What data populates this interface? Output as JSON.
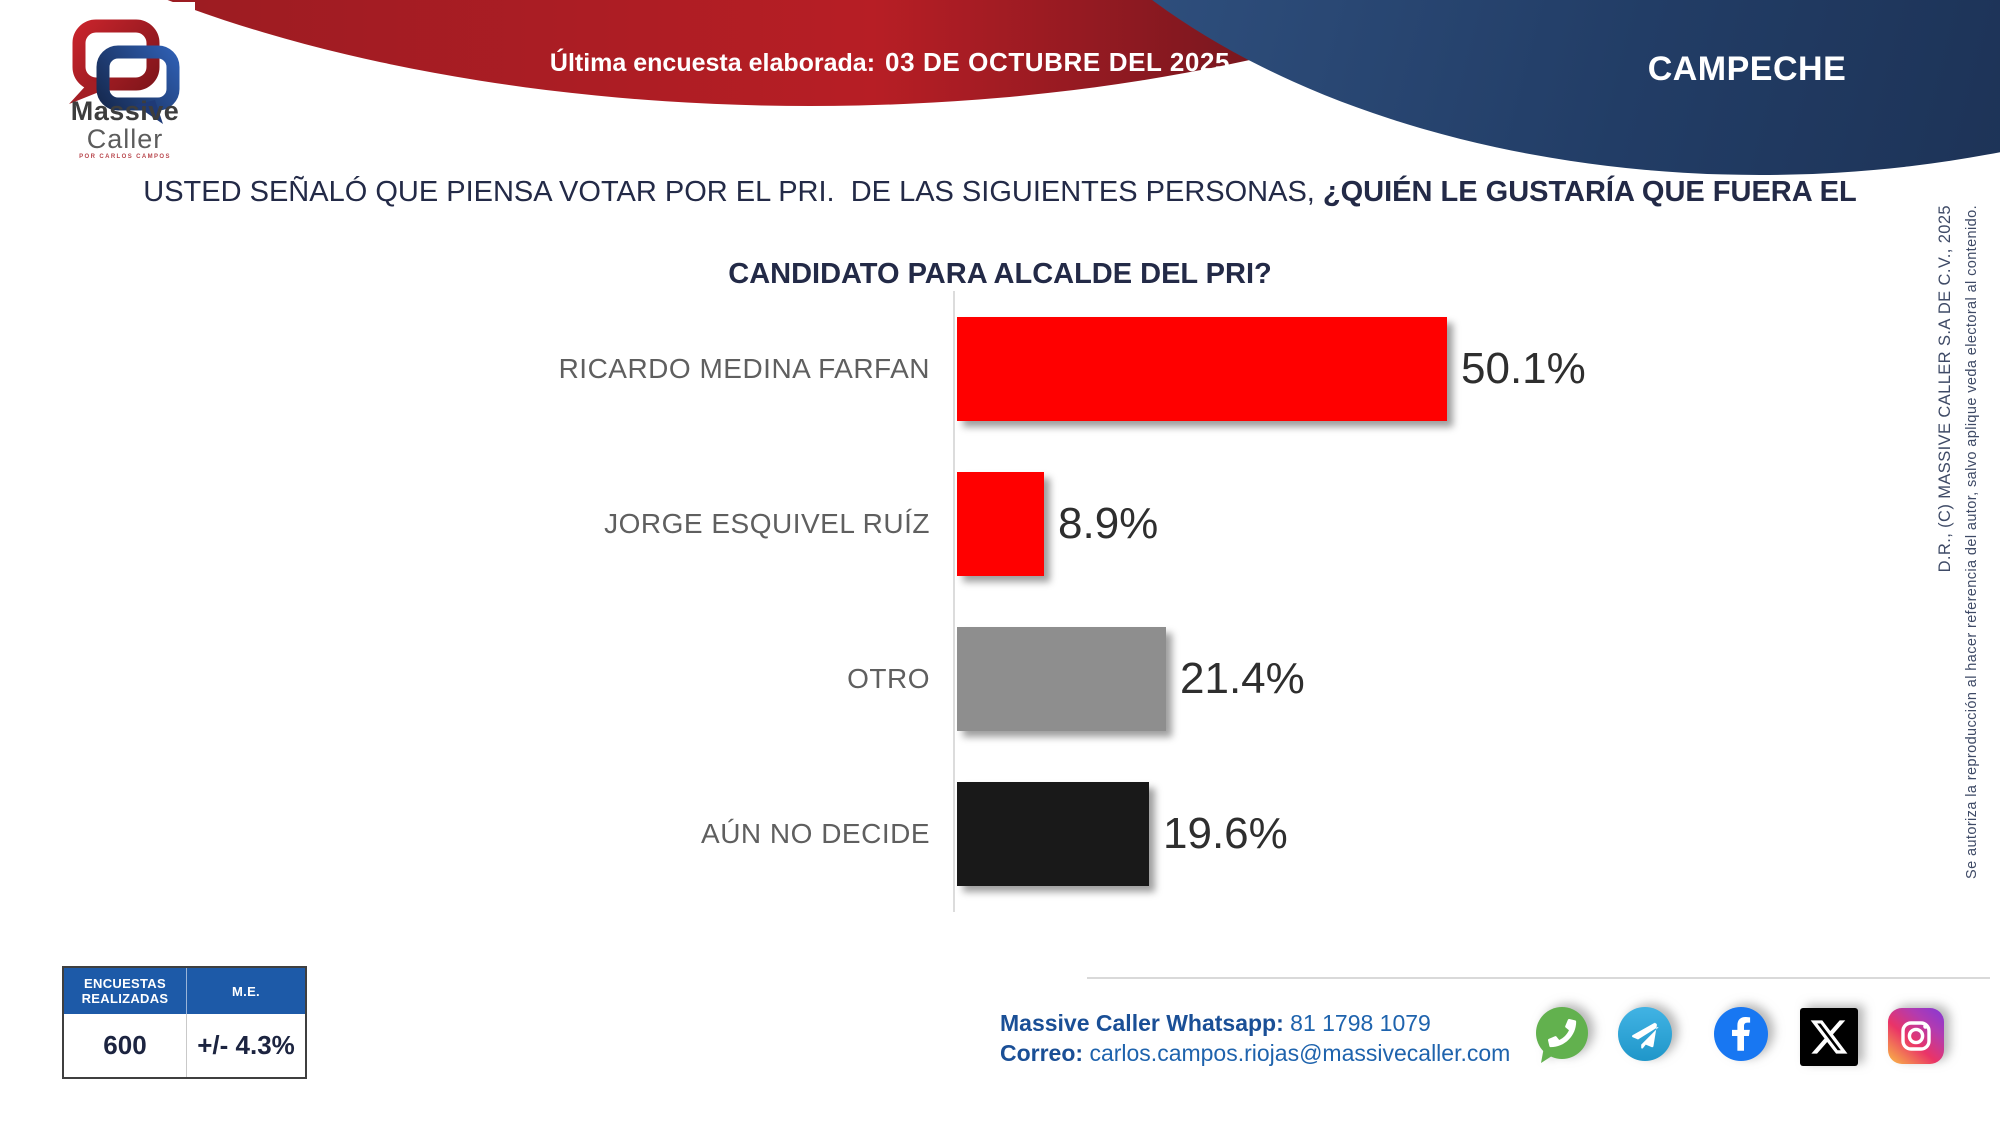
{
  "header": {
    "banner": {
      "label": "Última encuesta elaborada:",
      "date": "03 DE OCTUBRE DEL 2025"
    },
    "region": "CAMPECHE",
    "logo": {
      "line1": "Massive",
      "line2": "Caller",
      "tagline": "POR CARLOS CAMPOS"
    }
  },
  "title": {
    "regular": "USTED SEÑALÓ QUE PIENSA VOTAR POR EL PRI.  DE LAS SIGUIENTES PERSONAS, ",
    "bold_line1": "¿QUIÉN LE GUSTARÍA QUE FUERA EL",
    "bold_line2": "CANDIDATO PARA ALCALDE DEL PRI?"
  },
  "chart_data": {
    "type": "bar",
    "orientation": "horizontal",
    "categories": [
      "RICARDO MEDINA FARFAN",
      "JORGE ESQUIVEL RUÍZ",
      "OTRO",
      "AÚN NO DECIDE"
    ],
    "values": [
      50.1,
      8.9,
      21.4,
      19.6
    ],
    "value_labels": [
      "50.1%",
      "8.9%",
      "21.4%",
      "19.6%"
    ],
    "bar_colors": [
      "#ff0000",
      "#ff0000",
      "#8e8e8e",
      "#191919"
    ],
    "unit": "%",
    "xlim": [
      0,
      52
    ],
    "grid": false,
    "legend": false
  },
  "stats_table": {
    "header_col1": "ENCUESTAS REALIZADAS",
    "header_col2": "M.E.",
    "value_col1": "600",
    "value_col2": "+/- 4.3%"
  },
  "contact": {
    "whatsapp_label": "Massive Caller Whatsapp:",
    "whatsapp_number": " 81 1798 1079",
    "email_label": "Correo:",
    "email": " carlos.campos.riojas@massivecaller.com"
  },
  "social_icons": [
    "whatsapp-icon",
    "telegram-icon",
    "facebook-icon",
    "x-icon",
    "instagram-icon"
  ],
  "copyright": {
    "line1": "D.R., (C) MASSIVE CALLER S.A DE C.V., 2025",
    "line2": "Se autoriza la reproducción al hacer referencia del autor, salvo aplique veda electoral al contenido."
  },
  "colors": {
    "banner_red": "#b01d24",
    "banner_navy": "#24406b",
    "title_navy": "#232a47",
    "bar_red": "#ff0000",
    "bar_gray": "#8e8e8e",
    "bar_black": "#191919",
    "table_header_blue": "#1d5aa8",
    "link_blue": "#1e63ad"
  }
}
